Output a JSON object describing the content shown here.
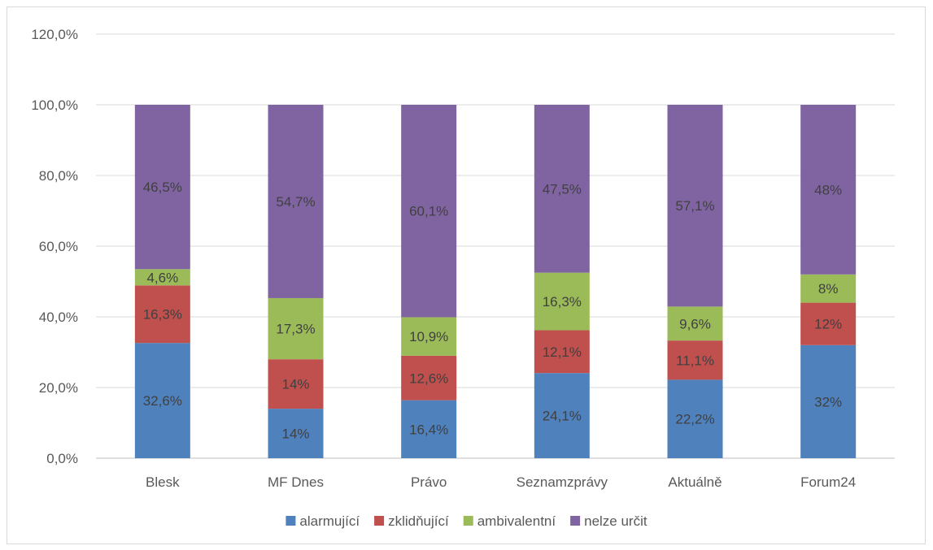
{
  "chart_data": {
    "type": "bar",
    "stacked": true,
    "title": "",
    "xlabel": "",
    "ylabel": "",
    "ylim": [
      0,
      120
    ],
    "yticks": [
      "0,0%",
      "20,0%",
      "40,0%",
      "60,0%",
      "80,0%",
      "100,0%",
      "120,0%"
    ],
    "categories": [
      "Blesk",
      "MF Dnes",
      "Právo",
      "Seznamzprávy",
      "Aktuálně",
      "Forum24"
    ],
    "series": [
      {
        "name": "alarmující",
        "color": "#4f81bd",
        "values": [
          32.6,
          14,
          16.4,
          24.1,
          22.2,
          32
        ],
        "labels": [
          "32,6%",
          "14%",
          "16,4%",
          "24,1%",
          "22,2%",
          "32%"
        ]
      },
      {
        "name": "zklidňující",
        "color": "#c0504d",
        "values": [
          16.3,
          14,
          12.6,
          12.1,
          11.1,
          12
        ],
        "labels": [
          "16,3%",
          "14%",
          "12,6%",
          "12,1%",
          "11,1%",
          "12%"
        ]
      },
      {
        "name": "ambivalentní",
        "color": "#9bbb59",
        "values": [
          4.6,
          17.3,
          10.9,
          16.3,
          9.6,
          8
        ],
        "labels": [
          "4,6%",
          "17,3%",
          "10,9%",
          "16,3%",
          "9,6%",
          "8%"
        ]
      },
      {
        "name": "nelze určit",
        "color": "#8064a2",
        "values": [
          46.5,
          54.7,
          60.1,
          47.5,
          57.1,
          48
        ],
        "labels": [
          "46,5%",
          "54,7%",
          "60,1%",
          "47,5%",
          "57,1%",
          "48%"
        ]
      }
    ],
    "grid": true,
    "legend": "bottom"
  }
}
